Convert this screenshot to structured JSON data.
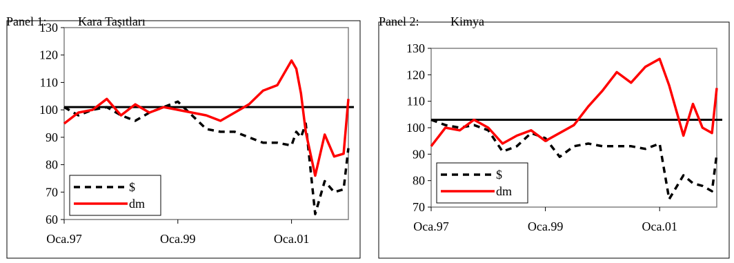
{
  "panels": [
    {
      "label": "Panel 1:",
      "title": "Kara Taşıtları"
    },
    {
      "label": "Panel 2:",
      "title": "Kimya"
    }
  ],
  "colors": {
    "dollar": "#000000",
    "dm": "#ff0000",
    "reference": "#000000",
    "plot_border": "#808080"
  },
  "chart_data": [
    {
      "type": "line",
      "title": "Kara Taşıtları",
      "x_tick_labels": [
        "Oca.97",
        "Oca.99",
        "Oca.01"
      ],
      "x_range": [
        "1997-01",
        "2002-01"
      ],
      "y_ticks": [
        60,
        70,
        80,
        90,
        100,
        110,
        120,
        130
      ],
      "ylim": [
        60,
        130
      ],
      "reference_line": 101,
      "grid": false,
      "legend_position": "bottom-left",
      "series": [
        {
          "name": "$",
          "style": "dashed",
          "x": [
            "1997-01",
            "1997-04",
            "1997-07",
            "1997-10",
            "1998-01",
            "1998-04",
            "1998-07",
            "1998-10",
            "1999-01",
            "1999-04",
            "1999-07",
            "1999-10",
            "2000-01",
            "2000-04",
            "2000-07",
            "2000-10",
            "2001-01",
            "2001-02",
            "2001-03",
            "2001-04",
            "2001-06",
            "2001-08",
            "2001-10",
            "2001-12",
            "2002-01"
          ],
          "values": [
            101,
            98,
            100,
            101,
            98,
            96,
            99,
            101,
            103,
            98,
            93,
            92,
            92,
            90,
            88,
            88,
            87,
            92,
            90,
            95,
            62,
            74,
            70,
            71,
            86
          ]
        },
        {
          "name": "dm",
          "style": "solid",
          "x": [
            "1997-01",
            "1997-04",
            "1997-07",
            "1997-10",
            "1998-01",
            "1998-04",
            "1998-07",
            "1998-10",
            "1999-01",
            "1999-04",
            "1999-07",
            "1999-10",
            "2000-01",
            "2000-04",
            "2000-07",
            "2000-10",
            "2001-01",
            "2001-02",
            "2001-03",
            "2001-04",
            "2001-06",
            "2001-08",
            "2001-10",
            "2001-12",
            "2002-01"
          ],
          "values": [
            95,
            99,
            100,
            104,
            98,
            102,
            99,
            101,
            100,
            99,
            98,
            96,
            99,
            102,
            107,
            109,
            118,
            115,
            106,
            92,
            76,
            91,
            83,
            84,
            104
          ]
        }
      ]
    },
    {
      "type": "line",
      "title": "Kimya",
      "x_tick_labels": [
        "Oca.97",
        "Oca.99",
        "Oca.01"
      ],
      "x_range": [
        "1997-01",
        "2002-01"
      ],
      "y_ticks": [
        70,
        80,
        90,
        100,
        110,
        120,
        130
      ],
      "ylim": [
        70,
        130
      ],
      "reference_line": 103,
      "grid": false,
      "legend_position": "bottom-left",
      "series": [
        {
          "name": "$",
          "style": "dashed",
          "x": [
            "1997-01",
            "1997-04",
            "1997-07",
            "1997-10",
            "1998-01",
            "1998-04",
            "1998-07",
            "1998-10",
            "1999-01",
            "1999-04",
            "1999-07",
            "1999-10",
            "2000-01",
            "2000-04",
            "2000-07",
            "2000-10",
            "2001-01",
            "2001-03",
            "2001-06",
            "2001-08",
            "2001-10",
            "2001-12",
            "2002-01"
          ],
          "values": [
            103,
            101,
            100,
            101,
            99,
            91,
            93,
            98,
            96,
            89,
            93,
            94,
            93,
            93,
            93,
            92,
            94,
            73,
            82,
            79,
            78,
            76,
            90
          ]
        },
        {
          "name": "dm",
          "style": "solid",
          "x": [
            "1997-01",
            "1997-04",
            "1997-07",
            "1997-10",
            "1998-01",
            "1998-04",
            "1998-07",
            "1998-10",
            "1999-01",
            "1999-04",
            "1999-07",
            "1999-10",
            "2000-01",
            "2000-04",
            "2000-07",
            "2000-10",
            "2001-01",
            "2001-03",
            "2001-06",
            "2001-08",
            "2001-10",
            "2001-12",
            "2002-01"
          ],
          "values": [
            93,
            100,
            99,
            103,
            100,
            94,
            97,
            99,
            95,
            98,
            101,
            108,
            114,
            121,
            117,
            123,
            126,
            116,
            97,
            109,
            100,
            98,
            115
          ]
        }
      ]
    }
  ]
}
